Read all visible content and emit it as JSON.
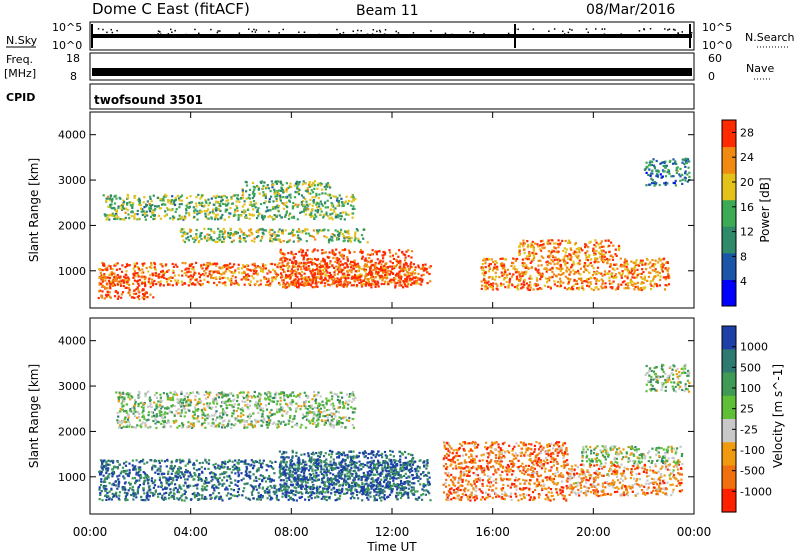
{
  "header": {
    "title": "Dome C East (fitACF)",
    "beam": "Beam 11",
    "date": "08/Mar/2016"
  },
  "top_panels": {
    "nsky_label": "N.Sky",
    "nsky_tick_hi": "10^5",
    "nsky_tick_lo": "10^0",
    "nsearch_label": "N.Search",
    "nsearch_tick_hi": "10^5",
    "nsearch_tick_lo": "10^0",
    "freq_label": "Freq.",
    "freq_unit": "[MHz]",
    "freq_tick_hi": "18",
    "freq_tick_lo": "8",
    "nave_label": "Nave",
    "nave_tick_hi": "60",
    "nave_tick_lo": "0",
    "cpid_label": "CPID",
    "cpid_value": "twofsound 3501"
  },
  "chart_data": [
    {
      "type": "heatmap",
      "name_printed": "Power",
      "ylabel": "Slant Range [km]",
      "xlabel": "Time UT",
      "x_ticks": [
        "00:00",
        "04:00",
        "08:00",
        "12:00",
        "16:00",
        "20:00",
        "00:00"
      ],
      "xlim_hours": [
        0,
        24
      ],
      "y_ticks": [
        1000,
        2000,
        3000,
        4000
      ],
      "ylim": [
        180,
        4500
      ],
      "colorbar": {
        "label": "Power [dB]",
        "ticks": [
          4,
          8,
          12,
          16,
          20,
          24,
          28
        ],
        "range": [
          0,
          30
        ],
        "colors": [
          "#0000ff",
          "#1b55a8",
          "#2f8a6a",
          "#3daa55",
          "#e3c21a",
          "#f08a10",
          "#ff2a00"
        ]
      },
      "bands": [
        {
          "t0": 0.3,
          "t1": 13.5,
          "r0": 700,
          "r1": 1200,
          "level": 0.85
        },
        {
          "t0": 0.3,
          "t1": 2.5,
          "r0": 400,
          "r1": 900,
          "level": 0.95
        },
        {
          "t0": 7.5,
          "t1": 12.8,
          "r0": 650,
          "r1": 1500,
          "level": 0.95
        },
        {
          "t0": 15.5,
          "t1": 23.0,
          "r0": 600,
          "r1": 1300,
          "level": 0.8
        },
        {
          "t0": 17.0,
          "t1": 21.0,
          "r0": 1300,
          "r1": 1700,
          "level": 0.8
        },
        {
          "t0": 3.5,
          "t1": 11.0,
          "r0": 1650,
          "r1": 1950,
          "level": 0.55
        },
        {
          "t0": 0.5,
          "t1": 10.5,
          "r0": 2150,
          "r1": 2700,
          "level": 0.5
        },
        {
          "t0": 6.0,
          "t1": 9.5,
          "r0": 2700,
          "r1": 3000,
          "level": 0.5
        },
        {
          "t0": 22.0,
          "t1": 23.8,
          "r0": 2900,
          "r1": 3500,
          "level": 0.35
        }
      ]
    },
    {
      "type": "heatmap",
      "name_printed": "Velocity",
      "ylabel": "Slant Range [km]",
      "xlabel": "Time UT",
      "x_ticks": [
        "00:00",
        "04:00",
        "08:00",
        "12:00",
        "16:00",
        "20:00",
        "00:00"
      ],
      "xlim_hours": [
        0,
        24
      ],
      "y_ticks": [
        1000,
        2000,
        3000,
        4000
      ],
      "ylim": [
        180,
        4500
      ],
      "colorbar": {
        "label": "Velocity [m s^-1]",
        "ticks": [
          "1000",
          "500",
          "100",
          "25",
          "-25",
          "-100",
          "-500",
          "-1000"
        ],
        "colors": [
          "#1c3fa8",
          "#2e7a70",
          "#3e9a55",
          "#5fc038",
          "#c8c8c8",
          "#f09a10",
          "#f07010",
          "#ff2000"
        ]
      },
      "bands": [
        {
          "t0": 0.3,
          "t1": 13.5,
          "r0": 500,
          "r1": 1400,
          "level": 0.15
        },
        {
          "t0": 7.5,
          "t1": 12.8,
          "r0": 650,
          "r1": 1600,
          "level": 0.12
        },
        {
          "t0": 14.0,
          "t1": 19.0,
          "r0": 500,
          "r1": 1800,
          "level": 0.8
        },
        {
          "t0": 19.0,
          "t1": 23.5,
          "r0": 600,
          "r1": 1300,
          "level": 0.72
        },
        {
          "t0": 19.5,
          "t1": 23.5,
          "r0": 1300,
          "r1": 1700,
          "level": 0.45
        },
        {
          "t0": 1.0,
          "t1": 10.5,
          "r0": 2100,
          "r1": 2900,
          "level": 0.45
        },
        {
          "t0": 22.0,
          "t1": 23.8,
          "r0": 2900,
          "r1": 3500,
          "level": 0.45
        }
      ]
    }
  ],
  "x_axis_title": "Time UT"
}
